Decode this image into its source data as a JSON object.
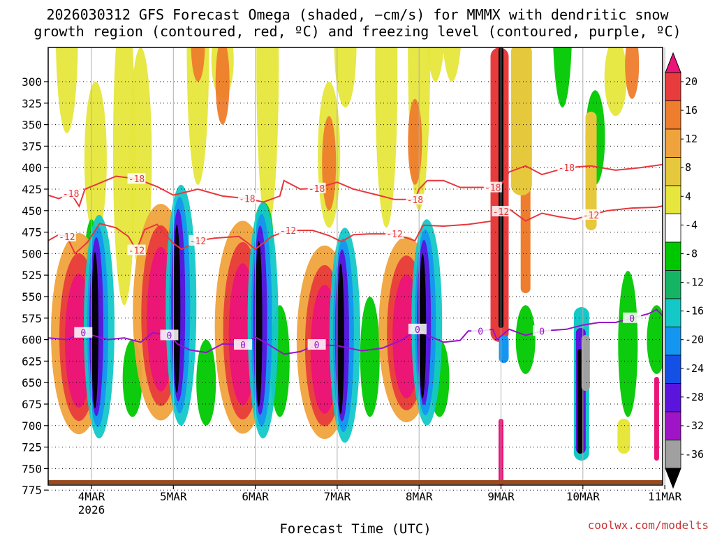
{
  "chart_data": {
    "type": "heatmap",
    "title_line1": "2026030312 GFS Forecast Omega (shaded, −cm/s) for MMMX with dendritic snow",
    "title_line2": "growth region (contoured, red, ºC) and freezing level (contoured, purple, ºC)",
    "xlabel": "Forecast Time (UTC)",
    "credit": "coolwx.com/modelts",
    "x_ticks": [
      {
        "day": 4,
        "label": "4MAR",
        "sub": "2026"
      },
      {
        "day": 5,
        "label": "5MAR",
        "sub": ""
      },
      {
        "day": 6,
        "label": "6MAR",
        "sub": ""
      },
      {
        "day": 7,
        "label": "7MAR",
        "sub": ""
      },
      {
        "day": 8,
        "label": "8MAR",
        "sub": ""
      },
      {
        "day": 9,
        "label": "9MAR",
        "sub": ""
      },
      {
        "day": 10,
        "label": "10MAR",
        "sub": ""
      },
      {
        "day": 11,
        "label": "11MAR",
        "sub": ""
      }
    ],
    "x_range_days": [
      3.47,
      11.0
    ],
    "y_ticks": [
      "300",
      "325",
      "350",
      "375",
      "400",
      "425",
      "450",
      "475",
      "500",
      "525",
      "550",
      "575",
      "600",
      "625",
      "650",
      "675",
      "700",
      "725",
      "750",
      "775"
    ],
    "y_tick_values": [
      300,
      325,
      350,
      375,
      400,
      425,
      450,
      475,
      500,
      525,
      550,
      575,
      600,
      625,
      650,
      675,
      700,
      725,
      750,
      775
    ],
    "colorbar": {
      "labels": [
        "20",
        "16",
        "12",
        "8",
        "4",
        "-4",
        "-8",
        "-12",
        "-16",
        "-20",
        "-24",
        "-28",
        "-32",
        "-36"
      ],
      "colors": [
        "#eb1478",
        "#e83c3c",
        "#ee7d2d",
        "#f0a33c",
        "#e6c83c",
        "#e6e63c",
        "#ffffff",
        "#00c800",
        "#14b464",
        "#14c8c8",
        "#1496f0",
        "#1450e6",
        "#5a14dc",
        "#a014c8",
        "#a0a0a0",
        "#000000"
      ]
    },
    "contours": {
      "dgz_minus18": {
        "label": "-18",
        "color": "#e8373c",
        "points": [
          [
            3.47,
            432
          ],
          [
            3.6,
            436
          ],
          [
            3.75,
            430
          ],
          [
            3.85,
            445
          ],
          [
            3.92,
            425
          ],
          [
            4.05,
            420
          ],
          [
            4.3,
            410
          ],
          [
            4.55,
            413
          ],
          [
            4.8,
            422
          ],
          [
            5.0,
            432
          ],
          [
            5.3,
            425
          ],
          [
            5.6,
            433
          ],
          [
            5.9,
            436
          ],
          [
            6.1,
            440
          ],
          [
            6.3,
            433
          ],
          [
            6.35,
            415
          ],
          [
            6.55,
            425
          ],
          [
            6.75,
            424
          ],
          [
            7.0,
            417
          ],
          [
            7.2,
            425
          ],
          [
            7.5,
            432
          ],
          [
            7.7,
            437
          ],
          [
            7.95,
            437
          ],
          [
            8.0,
            425
          ],
          [
            8.1,
            415
          ],
          [
            8.3,
            415
          ],
          [
            8.5,
            423
          ],
          [
            8.9,
            423
          ],
          [
            9.0,
            420
          ],
          [
            9.1,
            405
          ],
          [
            9.3,
            398
          ],
          [
            9.5,
            408
          ],
          [
            9.8,
            400
          ],
          [
            10.1,
            398
          ],
          [
            10.4,
            403
          ],
          [
            10.7,
            400
          ],
          [
            11.0,
            396
          ]
        ]
      },
      "dgz_minus12": {
        "label": "-12",
        "color": "#e8373c",
        "points": [
          [
            3.47,
            485
          ],
          [
            3.6,
            478
          ],
          [
            3.7,
            480
          ],
          [
            3.8,
            500
          ],
          [
            3.95,
            487
          ],
          [
            4.1,
            465
          ],
          [
            4.3,
            470
          ],
          [
            4.45,
            480
          ],
          [
            4.55,
            496
          ],
          [
            4.65,
            472
          ],
          [
            4.8,
            466
          ],
          [
            4.9,
            478
          ],
          [
            5.0,
            488
          ],
          [
            5.1,
            495
          ],
          [
            5.3,
            485
          ],
          [
            5.5,
            482
          ],
          [
            5.8,
            480
          ],
          [
            5.9,
            487
          ],
          [
            6.0,
            495
          ],
          [
            6.2,
            480
          ],
          [
            6.4,
            473
          ],
          [
            6.7,
            473
          ],
          [
            6.9,
            479
          ],
          [
            7.05,
            486
          ],
          [
            7.2,
            478
          ],
          [
            7.4,
            477
          ],
          [
            7.7,
            477
          ],
          [
            7.95,
            485
          ],
          [
            8.05,
            467
          ],
          [
            8.3,
            468
          ],
          [
            8.6,
            466
          ],
          [
            8.9,
            462
          ],
          [
            9.0,
            451
          ],
          [
            9.1,
            448
          ],
          [
            9.3,
            462
          ],
          [
            9.5,
            453
          ],
          [
            9.7,
            457
          ],
          [
            9.9,
            460
          ],
          [
            10.1,
            455
          ],
          [
            10.3,
            450
          ],
          [
            10.6,
            447
          ],
          [
            10.9,
            446
          ],
          [
            11.0,
            444
          ]
        ]
      },
      "freezing_level": {
        "label": "0",
        "color": "#9614c8",
        "points": [
          [
            3.47,
            598
          ],
          [
            3.7,
            600
          ],
          [
            3.9,
            592
          ],
          [
            4.2,
            600
          ],
          [
            4.4,
            598
          ],
          [
            4.6,
            603
          ],
          [
            4.75,
            592
          ],
          [
            4.95,
            595
          ],
          [
            5.05,
            605
          ],
          [
            5.2,
            612
          ],
          [
            5.4,
            615
          ],
          [
            5.6,
            605
          ],
          [
            5.85,
            606
          ],
          [
            6.0,
            597
          ],
          [
            6.15,
            605
          ],
          [
            6.35,
            617
          ],
          [
            6.55,
            614
          ],
          [
            6.75,
            606
          ],
          [
            7.0,
            607
          ],
          [
            7.3,
            613
          ],
          [
            7.55,
            610
          ],
          [
            7.8,
            600
          ],
          [
            7.98,
            588
          ],
          [
            8.1,
            595
          ],
          [
            8.3,
            603
          ],
          [
            8.5,
            601
          ],
          [
            8.6,
            590
          ],
          [
            8.75,
            590
          ],
          [
            8.9,
            588
          ],
          [
            8.95,
            600
          ],
          [
            9.1,
            588
          ],
          [
            9.3,
            595
          ],
          [
            9.5,
            590
          ],
          [
            9.8,
            588
          ],
          [
            10.0,
            583
          ],
          [
            10.2,
            580
          ],
          [
            10.4,
            580
          ],
          [
            10.6,
            575
          ],
          [
            10.8,
            570
          ],
          [
            10.9,
            565
          ],
          [
            11.0,
            575
          ]
        ]
      }
    }
  }
}
